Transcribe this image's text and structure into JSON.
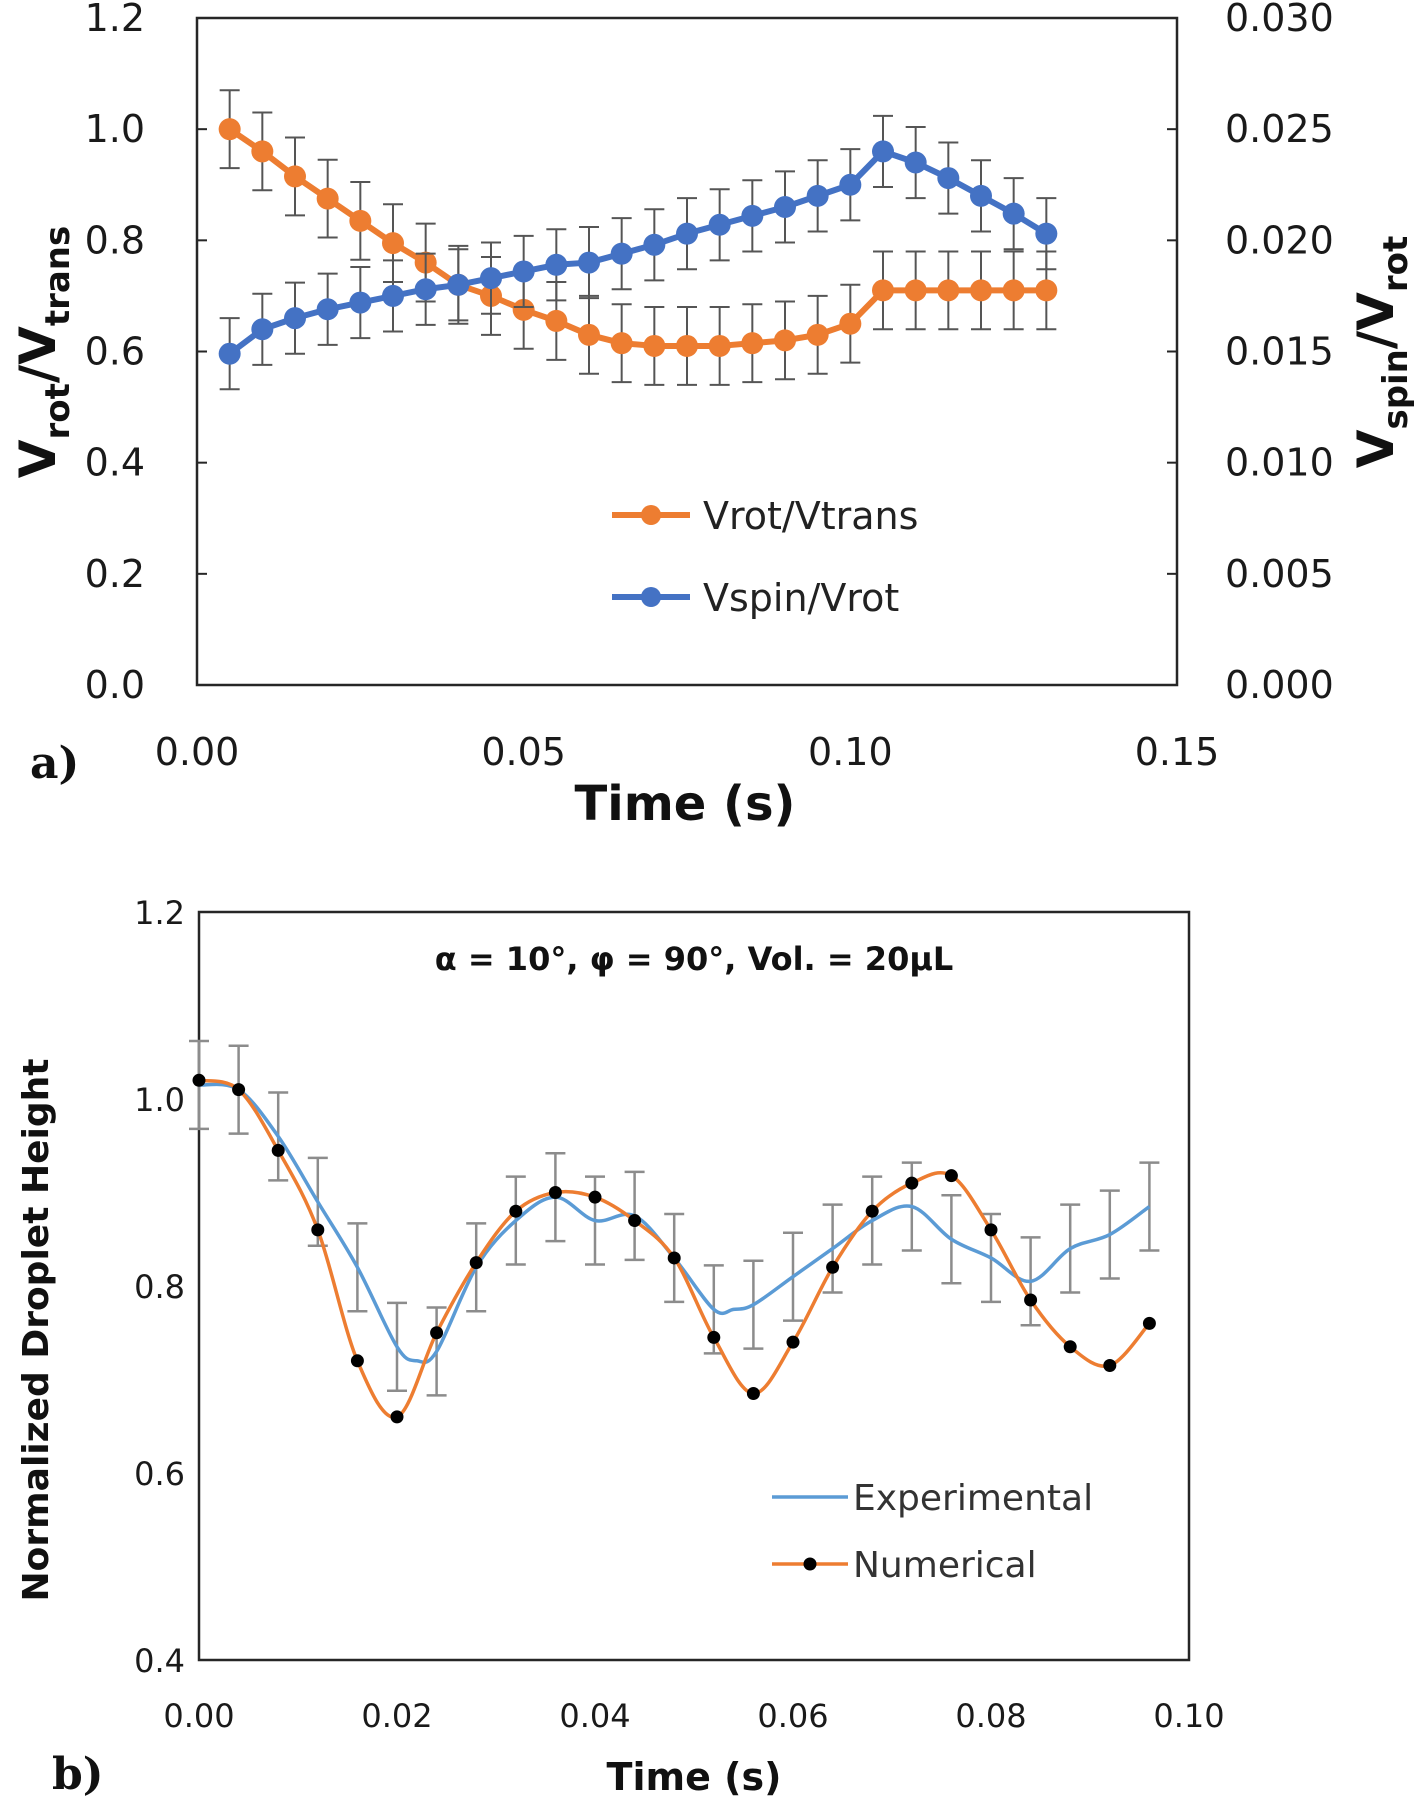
{
  "chart_data": [
    {
      "panel": "a)",
      "type": "line",
      "xlabel": "Time (s)",
      "ylabel_left": {
        "base": "V",
        "sub1": "rot",
        "slash": "/V",
        "sub2": "trans"
      },
      "ylabel_right": {
        "base": "V",
        "sub1": "spin",
        "slash": "/V",
        "sub2": "rot"
      },
      "xlim": [
        0,
        0.15
      ],
      "ylim_left": [
        0,
        1.2
      ],
      "ylim_right": [
        0,
        0.03
      ],
      "x_ticks": [
        "0.00",
        "0.05",
        "0.10",
        "0.15"
      ],
      "y_ticks_left": [
        "0.0",
        "0.2",
        "0.4",
        "0.6",
        "0.8",
        "1.0",
        "1.2"
      ],
      "y_ticks_right": [
        "0.000",
        "0.005",
        "0.010",
        "0.015",
        "0.020",
        "0.025",
        "0.030"
      ],
      "x": [
        0.005,
        0.01,
        0.015,
        0.02,
        0.025,
        0.03,
        0.035,
        0.04,
        0.045,
        0.05,
        0.055,
        0.06,
        0.065,
        0.07,
        0.075,
        0.08,
        0.085,
        0.09,
        0.095,
        0.1,
        0.105,
        0.11,
        0.115,
        0.12,
        0.125,
        0.13
      ],
      "series": [
        {
          "name": "Vrot/Vtrans",
          "axis": "left",
          "color": "#ED7D31",
          "values": [
            1.0,
            0.96,
            0.915,
            0.875,
            0.835,
            0.795,
            0.76,
            0.72,
            0.7,
            0.675,
            0.655,
            0.63,
            0.615,
            0.61,
            0.61,
            0.61,
            0.615,
            0.62,
            0.63,
            0.65,
            0.71,
            0.71,
            0.71,
            0.71,
            0.71,
            0.71
          ],
          "error": 0.07
        },
        {
          "name": "Vspin/Vrot",
          "axis": "right",
          "color": "#4472C4",
          "values": [
            0.0149,
            0.016,
            0.0165,
            0.0169,
            0.0172,
            0.0175,
            0.0178,
            0.018,
            0.0183,
            0.0186,
            0.0189,
            0.019,
            0.0194,
            0.0198,
            0.0203,
            0.0207,
            0.0211,
            0.0215,
            0.022,
            0.0225,
            0.024,
            0.0235,
            0.0228,
            0.022,
            0.0212,
            0.0203
          ],
          "error": 0.0016
        }
      ]
    },
    {
      "panel": "b)",
      "type": "line",
      "title": "α  = 10°, φ  = 90°, Vol. = 20μL",
      "xlabel": "Time (s)",
      "ylabel": "Normalized Droplet Height",
      "xlim": [
        0,
        0.1
      ],
      "ylim": [
        0.4,
        1.2
      ],
      "x_ticks": [
        "0.00",
        "0.02",
        "0.04",
        "0.06",
        "0.08",
        "0.10"
      ],
      "y_ticks": [
        "0.4",
        "0.6",
        "0.8",
        "1.0",
        "1.2"
      ],
      "series": [
        {
          "name": "Experimental",
          "color": "#5B9BD5",
          "x": [
            0.0,
            0.004,
            0.008,
            0.012,
            0.016,
            0.02,
            0.022,
            0.024,
            0.028,
            0.032,
            0.036,
            0.04,
            0.044,
            0.048,
            0.052,
            0.054,
            0.056,
            0.06,
            0.064,
            0.068,
            0.072,
            0.076,
            0.08,
            0.084,
            0.088,
            0.092,
            0.096
          ],
          "values": [
            1.015,
            1.01,
            0.96,
            0.89,
            0.82,
            0.735,
            0.72,
            0.73,
            0.82,
            0.87,
            0.895,
            0.87,
            0.875,
            0.83,
            0.775,
            0.775,
            0.78,
            0.81,
            0.84,
            0.87,
            0.885,
            0.85,
            0.83,
            0.805,
            0.84,
            0.855,
            0.885
          ],
          "error_x": [
            0.0,
            0.004,
            0.008,
            0.012,
            0.016,
            0.02,
            0.024,
            0.028,
            0.032,
            0.036,
            0.04,
            0.044,
            0.048,
            0.052,
            0.056,
            0.06,
            0.064,
            0.068,
            0.072,
            0.076,
            0.08,
            0.084,
            0.088,
            0.092,
            0.096
          ],
          "error_y": [
            1.015,
            1.01,
            0.96,
            0.89,
            0.82,
            0.735,
            0.73,
            0.82,
            0.87,
            0.895,
            0.87,
            0.875,
            0.83,
            0.775,
            0.78,
            0.81,
            0.84,
            0.87,
            0.885,
            0.85,
            0.83,
            0.805,
            0.84,
            0.855,
            0.885
          ],
          "error": 0.047
        },
        {
          "name": "Numerical",
          "color": "#ED7D31",
          "marker_color": "#000000",
          "x": [
            0.0,
            0.004,
            0.008,
            0.012,
            0.016,
            0.02,
            0.024,
            0.028,
            0.032,
            0.036,
            0.04,
            0.044,
            0.048,
            0.052,
            0.056,
            0.06,
            0.064,
            0.068,
            0.072,
            0.076,
            0.08,
            0.084,
            0.088,
            0.092,
            0.096
          ],
          "values": [
            1.02,
            1.01,
            0.945,
            0.86,
            0.72,
            0.66,
            0.75,
            0.825,
            0.88,
            0.9,
            0.895,
            0.87,
            0.83,
            0.745,
            0.685,
            0.74,
            0.82,
            0.88,
            0.91,
            0.918,
            0.86,
            0.785,
            0.735,
            0.715,
            0.76
          ]
        }
      ]
    }
  ]
}
